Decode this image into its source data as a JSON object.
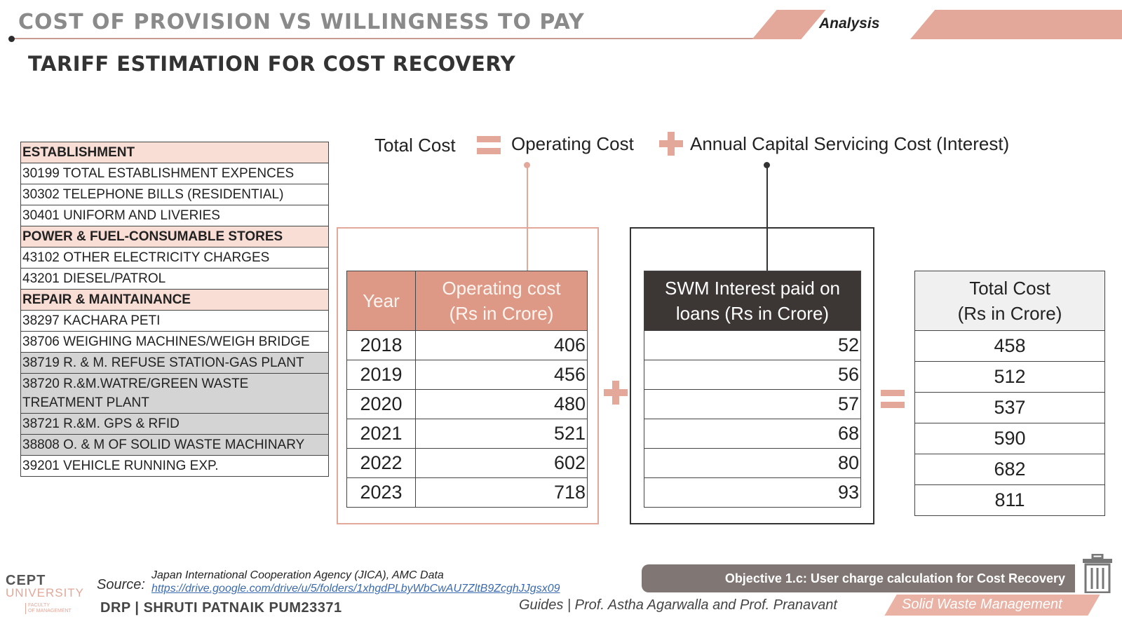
{
  "header": {
    "title": "COST OF PROVISION VS WILLINGNESS TO PAY",
    "section_label": "Analysis"
  },
  "subtitle": "TARIFF ESTIMATION FOR COST RECOVERY",
  "expense_list": [
    {
      "text": "ESTABLISHMENT"
    },
    {
      "text": "30199 TOTAL ESTABLISHMENT EXPENCES"
    },
    {
      "text": "30302 TELEPHONE BILLS (RESIDENTIAL)"
    },
    {
      "text": "30401 UNIFORM AND LIVERIES"
    },
    {
      "text": "POWER  & FUEL-CONSUMABLE STORES"
    },
    {
      "text": "43102 OTHER ELECTRICITY CHARGES"
    },
    {
      "text": "43201 DIESEL/PATROL"
    },
    {
      "text": "REPAIR & MAINTAINANCE"
    },
    {
      "text": "38297 KACHARA PETI"
    },
    {
      "text": "38706 WEIGHING MACHINES/WEIGH BRIDGE"
    },
    {
      "text": "38719 R. & M. REFUSE STATION-GAS PLANT"
    },
    {
      "text": "38720 R.&M.WATRE/GREEN WASTE TREATMENT PLANT"
    },
    {
      "text": "38721 R.&M. GPS & RFID"
    },
    {
      "text": "38808 O. & M OF SOLID WASTE MACHINARY"
    },
    {
      "text": "39201 VEHICLE RUNNING EXP."
    }
  ],
  "formula": {
    "total": "Total Cost",
    "operating": "Operating Cost",
    "capital": "Annual Capital Servicing Cost (Interest)"
  },
  "operating_table": {
    "header_year": "Year",
    "header_value_line1": "Operating cost",
    "header_value_line2": "(Rs in Crore)",
    "rows": [
      {
        "year": "2018",
        "value": "406"
      },
      {
        "year": "2019",
        "value": "456"
      },
      {
        "year": "2020",
        "value": "480"
      },
      {
        "year": "2021",
        "value": "521"
      },
      {
        "year": "2022",
        "value": "602"
      },
      {
        "year": "2023",
        "value": "718"
      }
    ]
  },
  "interest_table": {
    "header_line1": "SWM Interest paid on",
    "header_line2": "loans (Rs in Crore)",
    "values": [
      "52",
      "56",
      "57",
      "68",
      "80",
      "93"
    ]
  },
  "total_table": {
    "header_line1": "Total Cost",
    "header_line2": "(Rs in Crore)",
    "values": [
      "458",
      "512",
      "537",
      "590",
      "682",
      "811"
    ]
  },
  "footer": {
    "logo_main": "CEPT",
    "logo_sub": "UNIVERSITY",
    "logo_faculty_1": "FACULTY",
    "logo_faculty_2": "OF MANAGEMENT",
    "source_label": "Source:",
    "source_text": "Japan International Cooperation Agency (JICA), AMC Data",
    "source_link": "https://drive.google.com/drive/u/5/folders/1xhgdPLbyWbCwAU7ZltB9ZcghJJgsx09",
    "author": "DRP | SHRUTI PATNAIK PUM23371",
    "objective": "Objective 1.c: User charge calculation for Cost Recovery",
    "guides": "Guides | Prof. Astha Agarwalla and Prof. Pranavant",
    "topic": "Solid Waste Management"
  },
  "colors": {
    "accent": "#e3a89a",
    "operating_header": "#dd9986",
    "interest_header": "#3c3634",
    "objective_bg": "#807673"
  },
  "icons": [
    "plus-icon",
    "equals-icon",
    "trash-bin-icon"
  ]
}
